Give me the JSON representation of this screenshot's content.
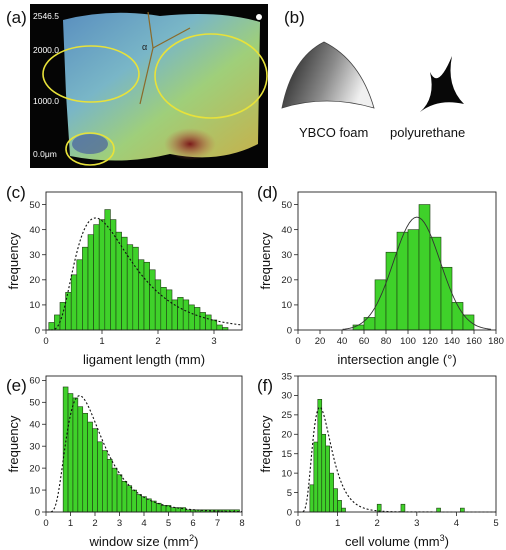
{
  "panel_labels": {
    "a": "(a)",
    "b": "(b)",
    "c": "(c)",
    "d": "(d)",
    "e": "(e)",
    "f": "(f)"
  },
  "scan": {
    "scale_labels": [
      "2546.5",
      "2000.0",
      "1000.0",
      "0.0μm"
    ],
    "angle_label": "α"
  },
  "shapes": {
    "ybco_label": "YBCO foam",
    "pu_label": "polyurethane"
  },
  "chart_data": [
    {
      "id": "c",
      "type": "bar",
      "xlabel": "ligament length (mm)",
      "ylabel": "frequency",
      "xlim": [
        0,
        3.5
      ],
      "ylim": [
        0,
        55
      ],
      "xticks": [
        0,
        1,
        2,
        3
      ],
      "yticks": [
        0,
        10,
        20,
        30,
        40,
        50
      ],
      "bin_width": 0.1,
      "bin_starts": [
        0.05,
        0.15,
        0.25,
        0.35,
        0.45,
        0.55,
        0.65,
        0.75,
        0.85,
        0.95,
        1.05,
        1.15,
        1.25,
        1.35,
        1.45,
        1.55,
        1.65,
        1.75,
        1.85,
        1.95,
        2.05,
        2.15,
        2.25,
        2.35,
        2.45,
        2.55,
        2.65,
        2.75,
        2.85,
        2.95,
        3.05,
        3.15
      ],
      "values": [
        3,
        6,
        11,
        15,
        22,
        28,
        33,
        38,
        42,
        44,
        48,
        44,
        39,
        37,
        34,
        33,
        28,
        27,
        24,
        20,
        17,
        16,
        12,
        13,
        12,
        10,
        9,
        7,
        6,
        4,
        2,
        1
      ],
      "fit": "lognormal"
    },
    {
      "id": "d",
      "type": "bar",
      "xlabel": "intersection angle (°)",
      "ylabel": "frequency",
      "xlim": [
        0,
        180
      ],
      "ylim": [
        0,
        55
      ],
      "xticks": [
        0,
        20,
        40,
        60,
        80,
        100,
        120,
        140,
        160,
        180
      ],
      "yticks": [
        0,
        10,
        20,
        30,
        40,
        50
      ],
      "bin_width": 10,
      "bin_starts": [
        50,
        60,
        70,
        80,
        90,
        100,
        110,
        120,
        130,
        140,
        150
      ],
      "values": [
        2,
        5,
        20,
        31,
        39,
        40,
        50,
        37,
        25,
        11,
        6
      ],
      "fit": "gaussian"
    },
    {
      "id": "e",
      "type": "bar",
      "xlabel": "window size (mm",
      "xlabel_sup": "2",
      "xlabel_end": ")",
      "ylabel": "frequency",
      "xlim": [
        0,
        8
      ],
      "ylim": [
        0,
        62
      ],
      "xticks": [
        0,
        1,
        2,
        3,
        4,
        5,
        6,
        7,
        8
      ],
      "yticks": [
        0,
        10,
        20,
        30,
        40,
        50,
        60
      ],
      "bin_width": 0.2,
      "bin_starts": [
        0.7,
        0.9,
        1.1,
        1.3,
        1.5,
        1.7,
        1.9,
        2.1,
        2.3,
        2.5,
        2.7,
        2.9,
        3.1,
        3.3,
        3.5,
        3.7,
        3.9,
        4.1,
        4.3,
        4.5,
        4.7,
        4.9,
        5.1,
        5.3,
        5.5,
        5.7,
        5.9,
        6.1,
        6.3,
        6.5,
        6.7,
        6.9,
        7.1,
        7.3,
        7.5,
        7.7
      ],
      "values": [
        57,
        54,
        52,
        48,
        45,
        41,
        38,
        32,
        28,
        24,
        20,
        17,
        14,
        12,
        10,
        8,
        7,
        6,
        5,
        4,
        3,
        3,
        2,
        2,
        2,
        1,
        1,
        1,
        1,
        1,
        1,
        1,
        1,
        1,
        1,
        1
      ],
      "fit": "lognormal"
    },
    {
      "id": "f",
      "type": "bar",
      "xlabel": "cell volume (mm",
      "xlabel_sup": "3",
      "xlabel_end": ")",
      "ylabel": "frequency",
      "xlim": [
        0,
        5
      ],
      "ylim": [
        0,
        35
      ],
      "xticks": [
        0,
        1,
        2,
        3,
        4,
        5
      ],
      "yticks": [
        0,
        5,
        10,
        15,
        20,
        25,
        30,
        35
      ],
      "bin_width": 0.1,
      "bin_starts": [
        0.3,
        0.4,
        0.5,
        0.6,
        0.7,
        0.8,
        0.9,
        1.0,
        1.1,
        2.0,
        2.6,
        3.5,
        4.1
      ],
      "values": [
        7,
        18,
        29,
        20,
        17,
        10,
        6,
        3,
        1,
        2,
        2,
        1,
        1
      ],
      "fit": "lognormal"
    }
  ]
}
